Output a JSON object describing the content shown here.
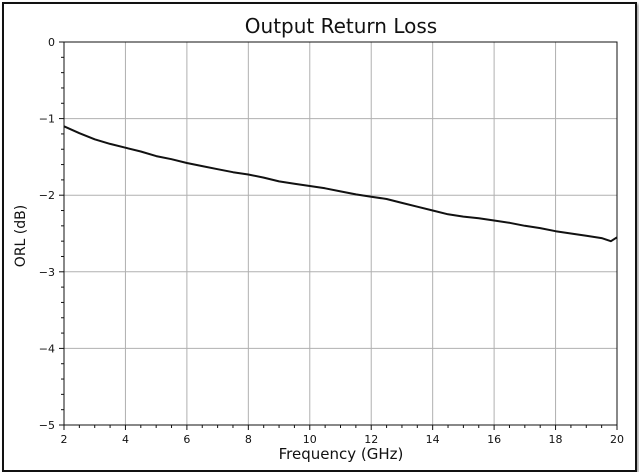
{
  "chart_data": {
    "type": "line",
    "title": "Output Return Loss",
    "xlabel": "Frequency (GHz)",
    "ylabel": "ORL (dB)",
    "xlim": [
      2,
      20
    ],
    "ylim": [
      -5,
      0
    ],
    "xticks": [
      2,
      4,
      6,
      8,
      10,
      12,
      14,
      16,
      18,
      20
    ],
    "yticks": [
      0,
      -1,
      -2,
      -3,
      -4,
      -5
    ],
    "grid": true,
    "line_color": "#111111",
    "series": [
      {
        "x": [
          2,
          2.5,
          3,
          3.5,
          4,
          4.5,
          5,
          5.5,
          6,
          6.5,
          7,
          7.5,
          8,
          8.5,
          9,
          9.5,
          10,
          10.5,
          11,
          11.5,
          12,
          12.5,
          13,
          13.5,
          14,
          14.5,
          15,
          15.5,
          16,
          16.5,
          17,
          17.5,
          18,
          18.5,
          19,
          19.5,
          19.8,
          20
        ],
        "y": [
          -1.1,
          -1.19,
          -1.27,
          -1.33,
          -1.38,
          -1.43,
          -1.49,
          -1.53,
          -1.58,
          -1.62,
          -1.66,
          -1.7,
          -1.73,
          -1.77,
          -1.82,
          -1.85,
          -1.88,
          -1.91,
          -1.95,
          -1.99,
          -2.02,
          -2.05,
          -2.1,
          -2.15,
          -2.2,
          -2.25,
          -2.28,
          -2.3,
          -2.33,
          -2.36,
          -2.4,
          -2.43,
          -2.47,
          -2.5,
          -2.53,
          -2.56,
          -2.6,
          -2.55
        ]
      }
    ]
  }
}
